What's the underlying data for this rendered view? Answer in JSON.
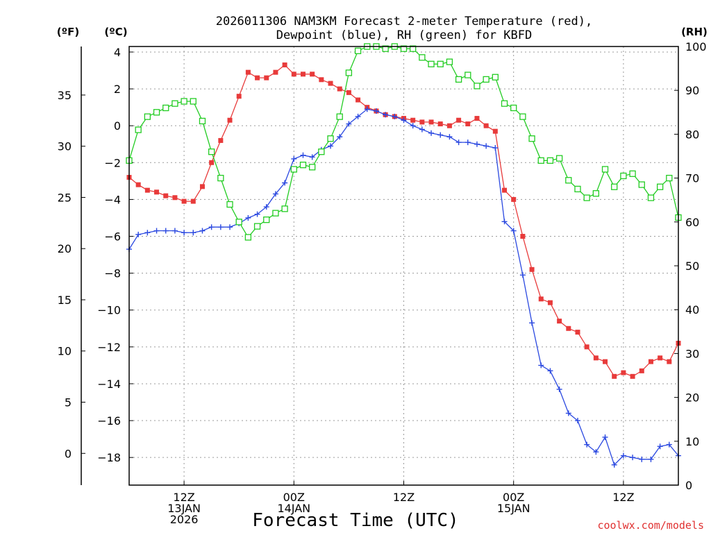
{
  "chart_data": {
    "type": "line",
    "title_lines": [
      "2026011306 NAM3KM Forecast 2-meter Temperature (red),",
      "Dewpoint (blue), RH (green) for KBFD"
    ],
    "xlabel": "Forecast Time (UTC)",
    "credit": "coolwx.com/models",
    "units": {
      "fahrenheit": "(ºF)",
      "celsius": "(ºC)",
      "rh": "(RH)"
    },
    "x_unit": "forecast hour (00 = 06Z 13JAN 2026)",
    "xlim": [
      0,
      60
    ],
    "ylim_c": [
      -19.5,
      4.3
    ],
    "ylim_rh": [
      0,
      100
    ],
    "celsius_ticks": [
      4,
      2,
      0,
      -2,
      -4,
      -6,
      -8,
      -10,
      -12,
      -14,
      -16,
      -18
    ],
    "fahrenheit_ticks": [
      35,
      30,
      25,
      20,
      15,
      10,
      5,
      0
    ],
    "rh_ticks": [
      100,
      90,
      80,
      70,
      60,
      50,
      40,
      30,
      20,
      10,
      0
    ],
    "x_ticks": [
      {
        "hour": 6,
        "lines": [
          "12Z",
          "13JAN",
          "2026"
        ]
      },
      {
        "hour": 18,
        "lines": [
          "00Z",
          "14JAN"
        ]
      },
      {
        "hour": 30,
        "lines": [
          "12Z"
        ]
      },
      {
        "hour": 42,
        "lines": [
          "00Z",
          "15JAN"
        ]
      },
      {
        "hour": 54,
        "lines": [
          "12Z"
        ]
      }
    ],
    "series": [
      {
        "name": "2-meter Temperature",
        "axis": "celsius",
        "color": "#e83a3a",
        "marker": "filled-square",
        "x": [
          0,
          1,
          2,
          3,
          4,
          5,
          6,
          7,
          8,
          9,
          10,
          11,
          12,
          13,
          14,
          15,
          16,
          17,
          18,
          19,
          20,
          21,
          22,
          23,
          24,
          25,
          26,
          27,
          28,
          29,
          30,
          31,
          32,
          33,
          34,
          35,
          36,
          37,
          38,
          39,
          40,
          41,
          42,
          43,
          44,
          45,
          46,
          47,
          48,
          49,
          50,
          51,
          52,
          53,
          54,
          55,
          56,
          57,
          58,
          59,
          60
        ],
        "values": [
          -2.8,
          -3.2,
          -3.5,
          -3.6,
          -3.8,
          -3.9,
          -4.1,
          -4.1,
          -3.3,
          -2.0,
          -0.8,
          0.3,
          1.6,
          2.9,
          2.6,
          2.6,
          2.9,
          3.3,
          2.8,
          2.8,
          2.8,
          2.5,
          2.3,
          2.0,
          1.8,
          1.4,
          1.0,
          0.8,
          0.6,
          0.5,
          0.4,
          0.3,
          0.2,
          0.2,
          0.1,
          0.0,
          0.3,
          0.1,
          0.4,
          0.0,
          -0.3,
          -3.5,
          -4.0,
          -6.0,
          -7.8,
          -9.4,
          -9.6,
          -10.6,
          -11.0,
          -11.2,
          -12.0,
          -12.6,
          -12.8,
          -13.6,
          -13.4,
          -13.6,
          -13.3,
          -12.8,
          -12.6,
          -12.8,
          -11.8
        ]
      },
      {
        "name": "Dewpoint",
        "axis": "celsius",
        "color": "#2a48e0",
        "marker": "plus",
        "x": [
          0,
          1,
          2,
          3,
          4,
          5,
          6,
          7,
          8,
          9,
          10,
          11,
          12,
          13,
          14,
          15,
          16,
          17,
          18,
          19,
          20,
          21,
          22,
          23,
          24,
          25,
          26,
          27,
          28,
          29,
          30,
          31,
          32,
          33,
          34,
          35,
          36,
          37,
          38,
          39,
          40,
          41,
          42,
          43,
          44,
          45,
          46,
          47,
          48,
          49,
          50,
          51,
          52,
          53,
          54,
          55,
          56,
          57,
          58,
          59,
          60
        ],
        "values": [
          -6.7,
          -5.9,
          -5.8,
          -5.7,
          -5.7,
          -5.7,
          -5.8,
          -5.8,
          -5.7,
          -5.5,
          -5.5,
          -5.5,
          -5.3,
          -5.0,
          -4.8,
          -4.4,
          -3.7,
          -3.1,
          -1.8,
          -1.6,
          -1.7,
          -1.3,
          -1.1,
          -0.6,
          0.1,
          0.5,
          0.9,
          0.8,
          0.6,
          0.5,
          0.3,
          0.0,
          -0.2,
          -0.4,
          -0.5,
          -0.6,
          -0.9,
          -0.9,
          -1.0,
          -1.1,
          -1.2,
          -5.2,
          -5.7,
          -8.1,
          -10.7,
          -13.0,
          -13.3,
          -14.3,
          -15.6,
          -16.0,
          -17.3,
          -17.7,
          -16.9,
          -18.4,
          -17.9,
          -18.0,
          -18.1,
          -18.1,
          -17.4,
          -17.3,
          -17.9
        ]
      },
      {
        "name": "RH",
        "axis": "rh",
        "color": "#22cc22",
        "marker": "open-square",
        "x": [
          0,
          1,
          2,
          3,
          4,
          5,
          6,
          7,
          8,
          9,
          10,
          11,
          12,
          13,
          14,
          15,
          16,
          17,
          18,
          19,
          20,
          21,
          22,
          23,
          24,
          25,
          26,
          27,
          28,
          29,
          30,
          31,
          32,
          33,
          34,
          35,
          36,
          37,
          38,
          39,
          40,
          41,
          42,
          43,
          44,
          45,
          46,
          47,
          48,
          49,
          50,
          51,
          52,
          53,
          54,
          55,
          56,
          57,
          58,
          59,
          60
        ],
        "values": [
          74,
          81,
          84,
          85,
          86,
          87,
          87.5,
          87.5,
          83,
          76,
          70,
          64,
          60,
          56.5,
          59,
          60.5,
          62,
          63,
          72,
          73,
          72.5,
          76,
          79,
          84,
          94,
          99,
          100,
          100,
          99.5,
          100,
          99.5,
          99.5,
          97.5,
          96,
          96,
          96.5,
          92.5,
          93.5,
          91,
          92.5,
          93,
          87,
          86,
          84,
          79,
          74,
          74,
          74.5,
          69.5,
          67.5,
          65.5,
          66.5,
          72,
          68,
          70.5,
          71,
          68.5,
          65.5,
          68,
          70,
          61
        ]
      }
    ]
  }
}
